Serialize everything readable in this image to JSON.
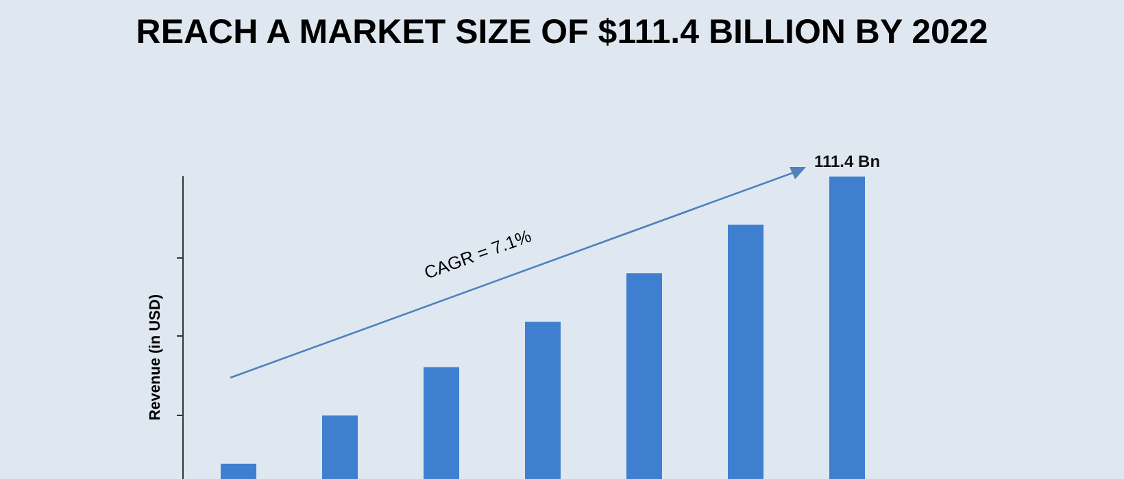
{
  "chart_data": {
    "type": "bar",
    "title": "REACH A MARKET SIZE OF $111.4 BILLION BY 2022",
    "ylabel": "Revenue (in USD)",
    "annotations": [
      "CAGR = 7.1%"
    ],
    "categories": [
      null,
      null,
      null,
      null,
      null,
      null,
      null
    ],
    "values": [
      5.6,
      23.4,
      41.2,
      57.9,
      75.8,
      93.6,
      111.4
    ],
    "value_labels": [
      null,
      null,
      null,
      null,
      null,
      null,
      "111.4 Bn"
    ],
    "ylim": [
      0,
      111.4
    ],
    "yticks": [
      {
        "value": 23.7,
        "label": null
      },
      {
        "value": 52.9,
        "label": null
      },
      {
        "value": 81.7,
        "label": null
      }
    ],
    "color": "#3f7fcf"
  }
}
